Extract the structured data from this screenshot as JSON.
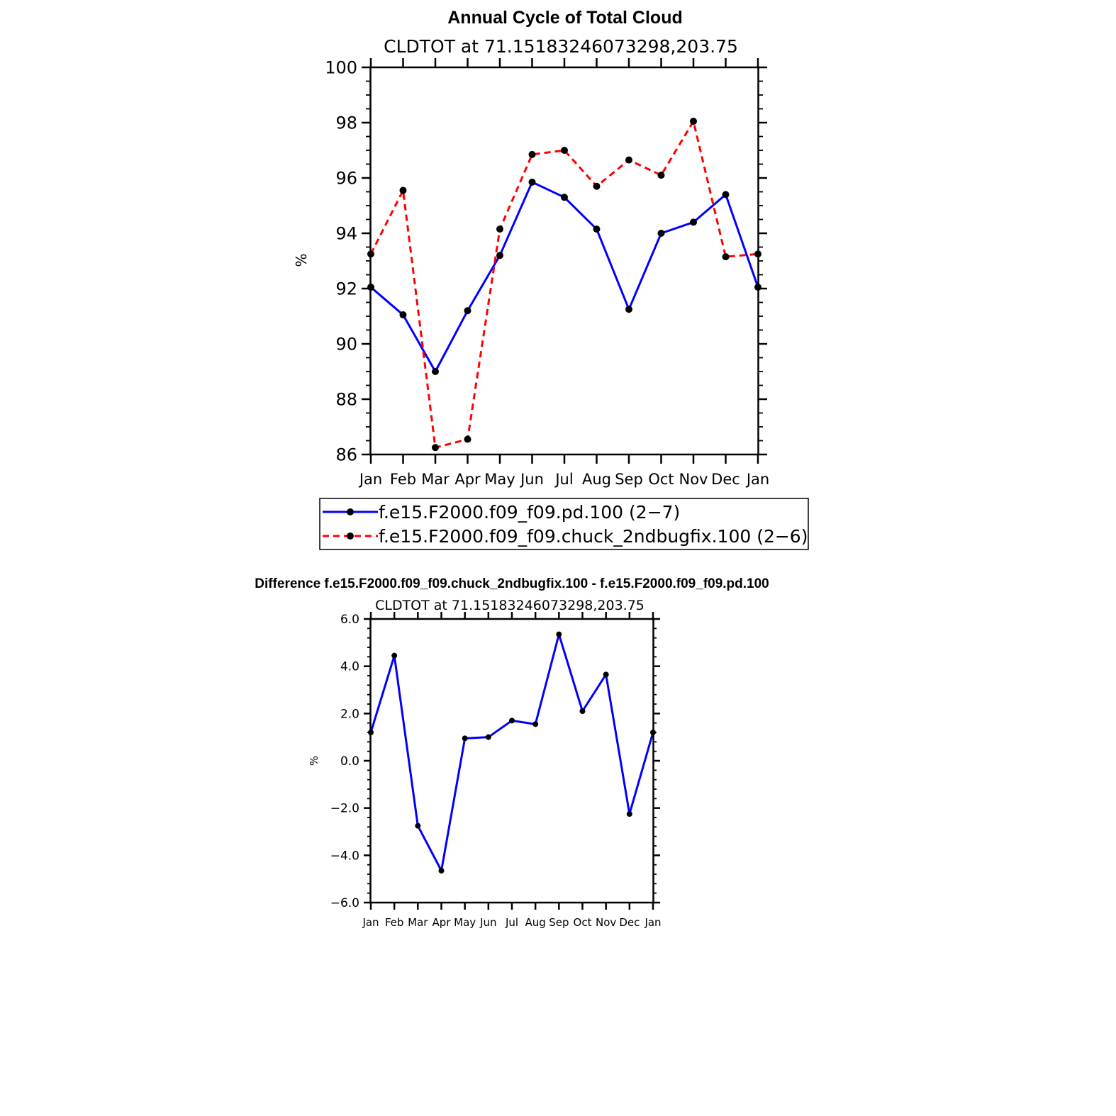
{
  "chart_data": [
    {
      "type": "line",
      "title": "Annual Cycle of Total Cloud",
      "subtitle": "CLDTOT at 71.15183246073298,203.75",
      "ylabel": "%",
      "ylim": [
        86,
        100
      ],
      "yticks": [
        "86",
        "88",
        "90",
        "92",
        "94",
        "96",
        "98",
        "100"
      ],
      "categories": [
        "Jan",
        "Feb",
        "Mar",
        "Apr",
        "May",
        "Jun",
        "Jul",
        "Aug",
        "Sep",
        "Oct",
        "Nov",
        "Dec",
        "Jan"
      ],
      "legend_position": "bottom",
      "series": [
        {
          "name": "f.e15.F2000.f09_f09.pd.100 (2−7)",
          "color": "#0000ff",
          "dash": "solid",
          "values": [
            92.05,
            91.05,
            89.0,
            91.2,
            93.2,
            95.85,
            95.3,
            94.15,
            91.25,
            94.0,
            94.4,
            95.4,
            92.05
          ]
        },
        {
          "name": "f.e15.F2000.f09_f09.chuck_2ndbugfix.100 (2−6)",
          "color": "#ff0000",
          "dash": "dashed",
          "values": [
            93.25,
            95.55,
            86.25,
            86.55,
            94.15,
            96.85,
            97.0,
            95.7,
            96.65,
            96.1,
            98.05,
            93.15,
            93.25
          ]
        }
      ]
    },
    {
      "type": "line",
      "title": "Difference f.e15.F2000.f09_f09.chuck_2ndbugfix.100 - f.e15.F2000.f09_f09.pd.100",
      "subtitle": "CLDTOT at 71.15183246073298,203.75",
      "ylabel": "%",
      "ylim": [
        -6,
        6
      ],
      "yticks": [
        "−6.0",
        "−4.0",
        "−2.0",
        "0.0",
        "2.0",
        "4.0",
        "6.0"
      ],
      "categories": [
        "Jan",
        "Feb",
        "Mar",
        "Apr",
        "May",
        "Jun",
        "Jul",
        "Aug",
        "Sep",
        "Oct",
        "Nov",
        "Dec",
        "Jan"
      ],
      "series": [
        {
          "color": "#0000ff",
          "dash": "solid",
          "values": [
            1.2,
            4.45,
            -2.75,
            -4.65,
            0.95,
            1.0,
            1.7,
            1.55,
            5.35,
            2.1,
            3.65,
            -2.25,
            1.2
          ]
        }
      ]
    }
  ]
}
